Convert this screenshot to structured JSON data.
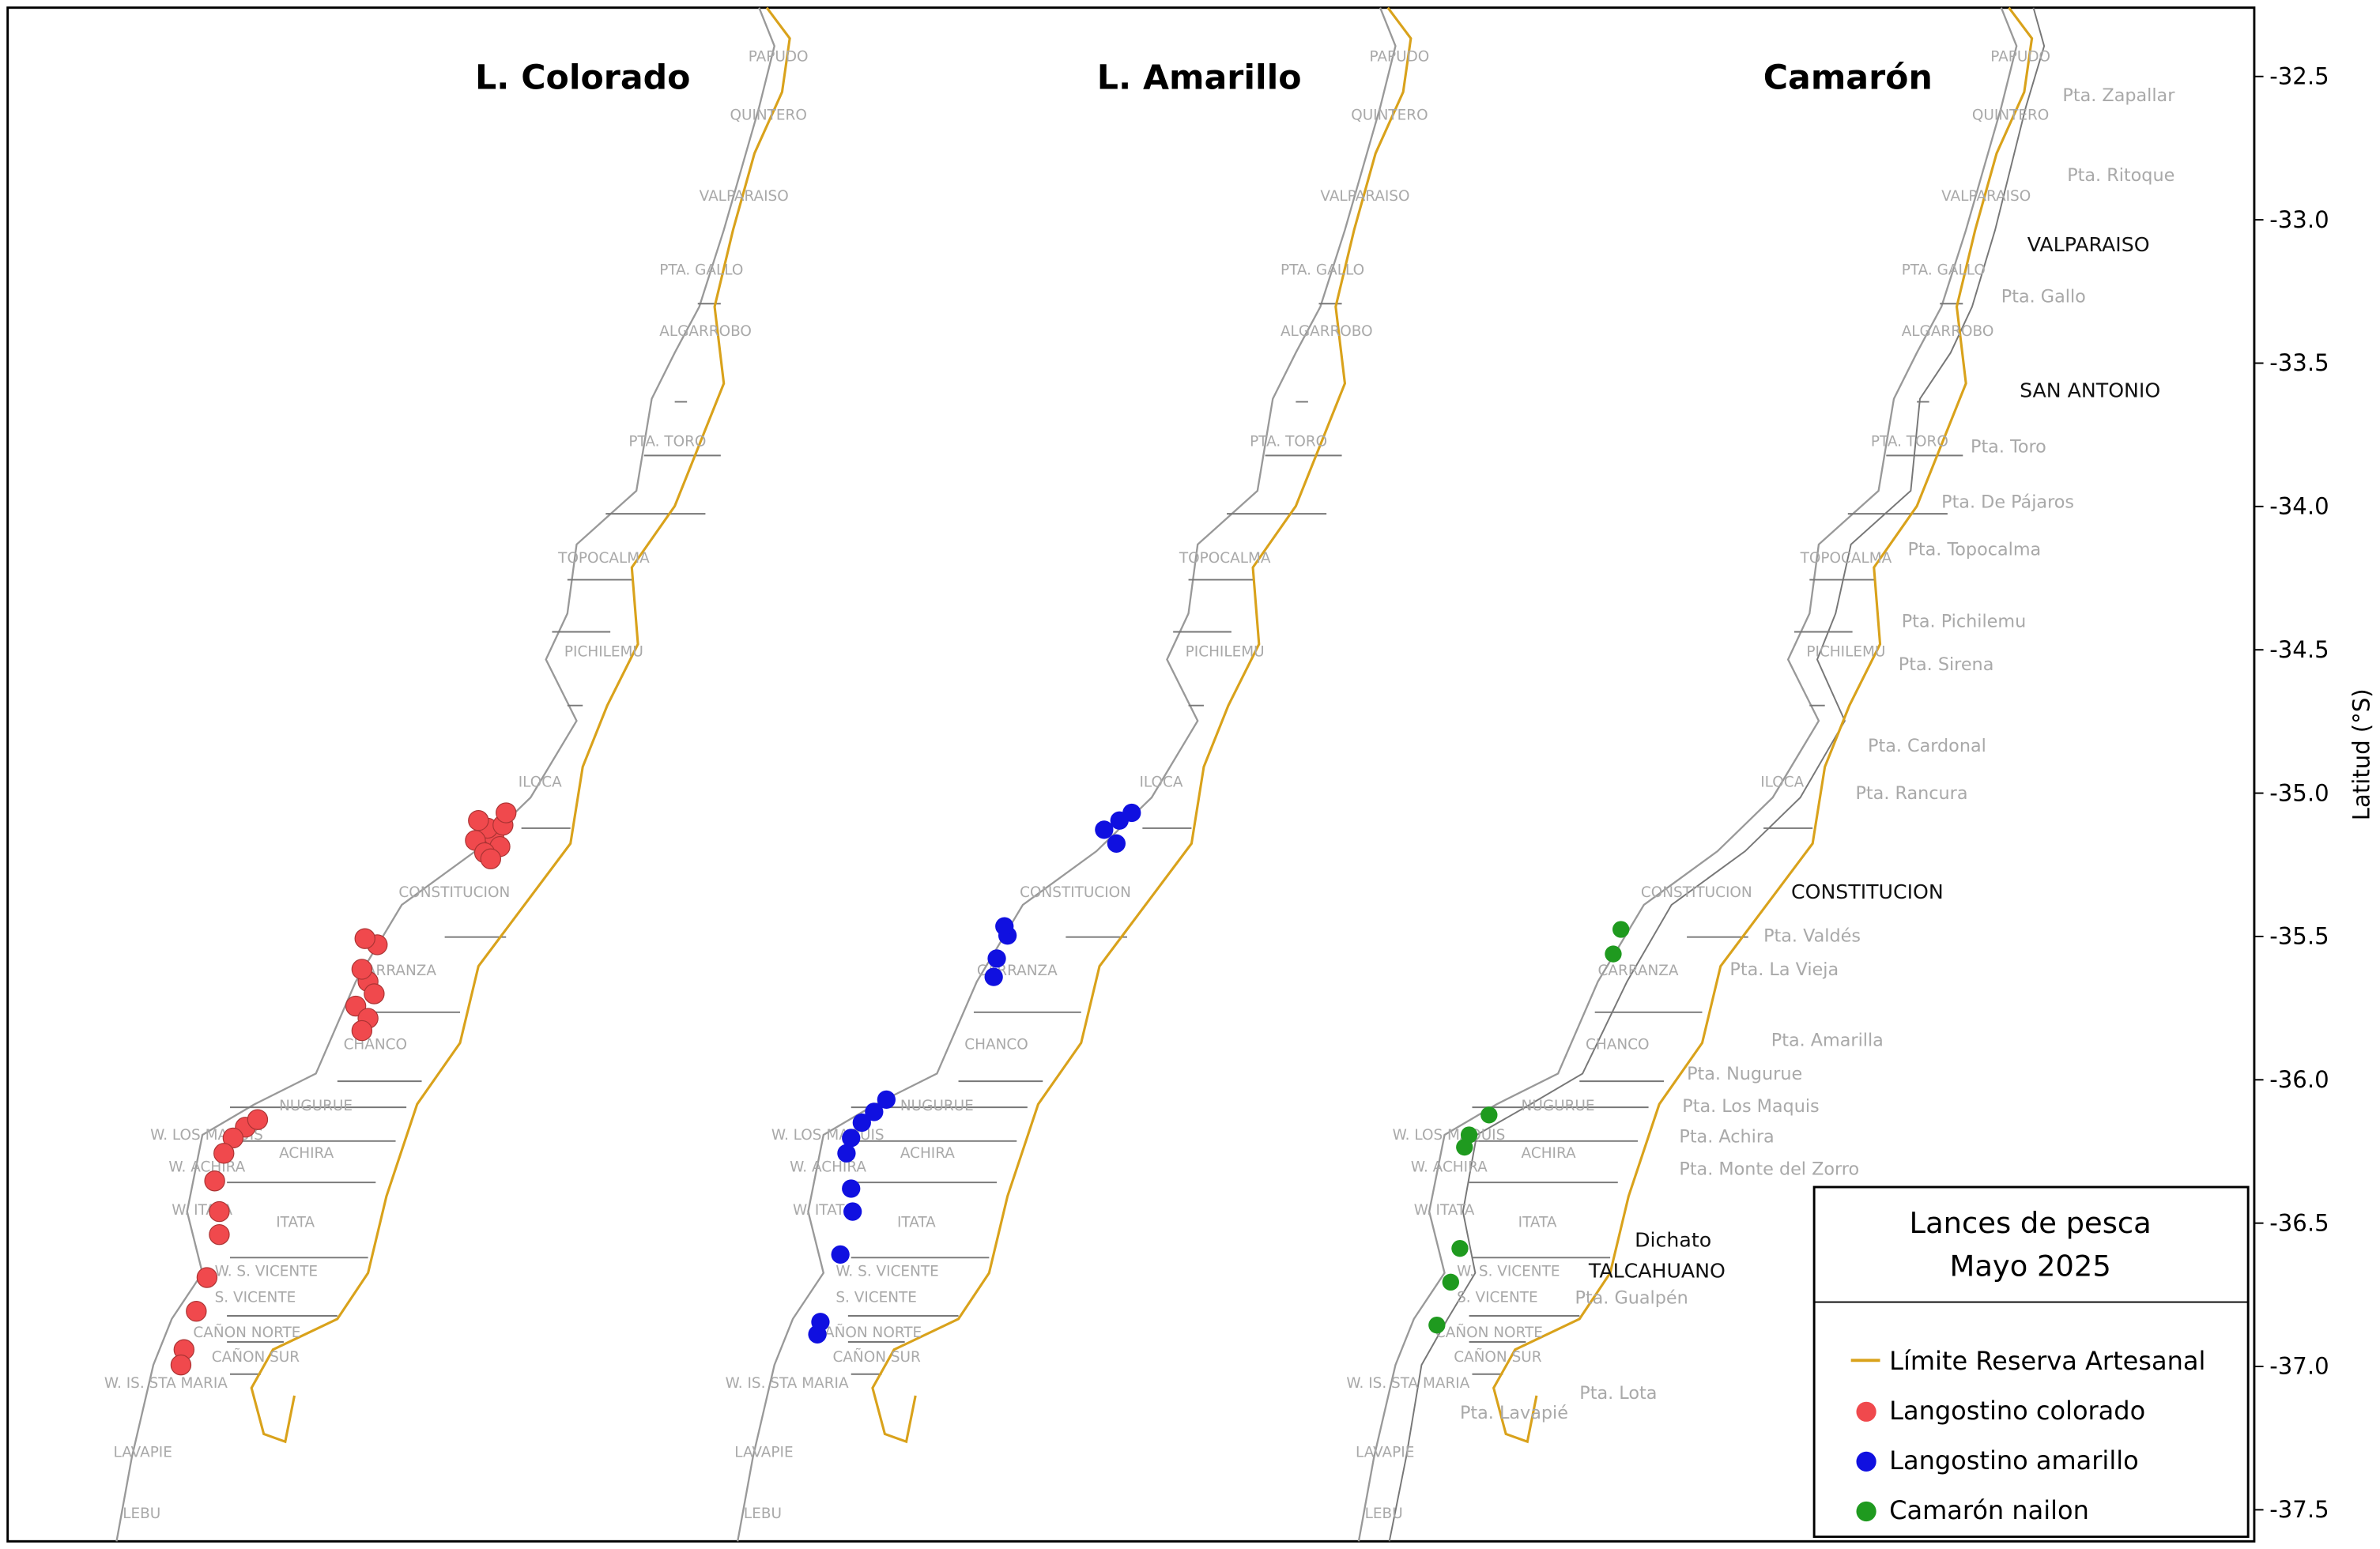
{
  "panels": [
    {
      "title": "L. Colorado",
      "legend_item": 1
    },
    {
      "title": "L. Amarillo",
      "legend_item": 2
    },
    {
      "title": "Camarón",
      "legend_item": 3
    }
  ],
  "zones": [
    "PAPUDO",
    "QUINTERO",
    "VALPARAISO",
    "PTA. GALLO",
    "ALGARROBO",
    "PTA. TORO",
    "TOPOCALMA",
    "PICHILEMU",
    "ILOCA",
    "CONSTITUCION",
    "CARRANZA",
    "CHANCO",
    "NUGURUE",
    "W. LOS MAQUIS",
    "ACHIRA",
    "W. ACHIRA",
    "W. ITATA",
    "ITATA",
    "W. S. VICENTE",
    "S. VICENTE",
    "CAÑON NORTE",
    "CAÑON SUR",
    "W. IS. STA MARIA",
    "LAVAPIE",
    "LEBU"
  ],
  "places": [
    "Pta. Zapallar",
    "Pta. Ritoque",
    "VALPARAISO",
    "Pta. Gallo",
    "SAN ANTONIO",
    "Pta. Toro",
    "Pta. De Pájaros",
    "Pta. Topocalma",
    "Pta. Pichilemu",
    "Pta. Sirena",
    "Pta. Cardonal",
    "Pta. Rancura",
    "CONSTITUCION",
    "Pta. Valdés",
    "Pta. La Vieja",
    "Pta. Amarilla",
    "Pta. Nugurue",
    "Pta. Los Maquis",
    "Pta. Achira",
    "Pta. Monte del Zorro",
    "Dichato",
    "TALCAHUANO",
    "Pta. Gualpén",
    "Pta. Lota",
    "Pta. Lavapié"
  ],
  "axis": {
    "label": "Latitud (°S)",
    "ylim": [
      -32.26,
      -37.61
    ],
    "yticks": [
      -32.5,
      {
        "value": -33,
        "label": "-33.0"
      },
      -33.5,
      {
        "value": -34,
        "label": "-34.0"
      },
      -34.5,
      {
        "value": -35,
        "label": "-35.0"
      },
      -35.5,
      {
        "value": -36,
        "label": "-36.0"
      },
      -36.5,
      {
        "value": -37,
        "label": "-37.0"
      },
      -37.5
    ]
  },
  "legend": {
    "title": [
      "Lances de pesca",
      "Mayo 2025"
    ],
    "items": [
      {
        "name": "Límite Reserva Artesanal",
        "color": "#d9a21b"
      },
      {
        "name": "Langostino colorado",
        "color": "#f0494d"
      },
      {
        "name": "Langostino amarillo",
        "color": "#1010e0"
      },
      {
        "name": "Camarón nailon",
        "color": "#1f9a1f"
      }
    ]
  }
}
